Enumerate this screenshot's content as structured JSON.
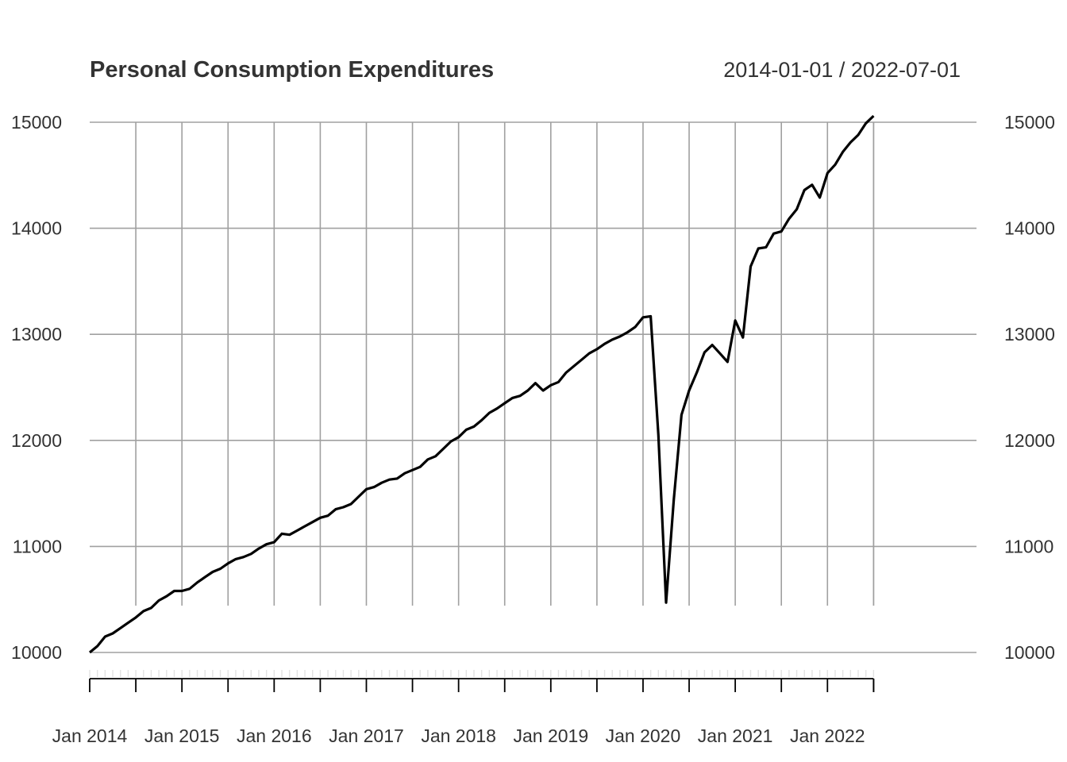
{
  "chart_data": {
    "type": "line",
    "title": "Personal Consumption Expenditures",
    "date_range": "2014-01-01 / 2022-07-01",
    "xlabel": "",
    "ylabel": "",
    "ylim": [
      10000,
      15000
    ],
    "y_ticks": [
      10000,
      11000,
      12000,
      13000,
      14000,
      15000
    ],
    "y_tick_labels": [
      "10000",
      "11000",
      "12000",
      "13000",
      "14000",
      "15000"
    ],
    "x_ticks": [
      "2014-01",
      "2015-01",
      "2016-01",
      "2017-01",
      "2018-01",
      "2019-01",
      "2020-01",
      "2021-01",
      "2022-01"
    ],
    "x_tick_labels": [
      "Jan 2014",
      "Jan 2015",
      "Jan 2016",
      "Jan 2017",
      "Jan 2018",
      "Jan 2019",
      "Jan 2020",
      "Jan 2021",
      "Jan 2022"
    ],
    "grid": true,
    "line_color": "#000000",
    "grid_color": "#a0a0a0",
    "x": [
      "2014-01",
      "2014-02",
      "2014-03",
      "2014-04",
      "2014-05",
      "2014-06",
      "2014-07",
      "2014-08",
      "2014-09",
      "2014-10",
      "2014-11",
      "2014-12",
      "2015-01",
      "2015-02",
      "2015-03",
      "2015-04",
      "2015-05",
      "2015-06",
      "2015-07",
      "2015-08",
      "2015-09",
      "2015-10",
      "2015-11",
      "2015-12",
      "2016-01",
      "2016-02",
      "2016-03",
      "2016-04",
      "2016-05",
      "2016-06",
      "2016-07",
      "2016-08",
      "2016-09",
      "2016-10",
      "2016-11",
      "2016-12",
      "2017-01",
      "2017-02",
      "2017-03",
      "2017-04",
      "2017-05",
      "2017-06",
      "2017-07",
      "2017-08",
      "2017-09",
      "2017-10",
      "2017-11",
      "2017-12",
      "2018-01",
      "2018-02",
      "2018-03",
      "2018-04",
      "2018-05",
      "2018-06",
      "2018-07",
      "2018-08",
      "2018-09",
      "2018-10",
      "2018-11",
      "2018-12",
      "2019-01",
      "2019-02",
      "2019-03",
      "2019-04",
      "2019-05",
      "2019-06",
      "2019-07",
      "2019-08",
      "2019-09",
      "2019-10",
      "2019-11",
      "2019-12",
      "2020-01",
      "2020-02",
      "2020-03",
      "2020-04",
      "2020-05",
      "2020-06",
      "2020-07",
      "2020-08",
      "2020-09",
      "2020-10",
      "2020-11",
      "2020-12",
      "2021-01",
      "2021-02",
      "2021-03",
      "2021-04",
      "2021-05",
      "2021-06",
      "2021-07",
      "2021-08",
      "2021-09",
      "2021-10",
      "2021-11",
      "2021-12",
      "2022-01",
      "2022-02",
      "2022-03",
      "2022-04",
      "2022-05",
      "2022-06",
      "2022-07"
    ],
    "series": [
      {
        "values": [
          10000,
          10060,
          10150,
          10180,
          10230,
          10280,
          10330,
          10390,
          10420,
          10490,
          10530,
          10580,
          10580,
          10600,
          10660,
          10710,
          10760,
          10790,
          10840,
          10880,
          10900,
          10930,
          10980,
          11020,
          11040,
          11120,
          11110,
          11150,
          11190,
          11230,
          11270,
          11290,
          11350,
          11370,
          11400,
          11470,
          11540,
          11560,
          11600,
          11630,
          11640,
          11690,
          11720,
          11750,
          11820,
          11850,
          11920,
          11990,
          12030,
          12100,
          12130,
          12190,
          12260,
          12300,
          12350,
          12400,
          12420,
          12470,
          12540,
          12470,
          12520,
          12550,
          12640,
          12700,
          12760,
          12820,
          12860,
          12910,
          12950,
          12980,
          13020,
          13070,
          13160,
          13170,
          12050,
          10470,
          11440,
          12240,
          12470,
          12640,
          12830,
          12900,
          12820,
          12740,
          13130,
          12970,
          13640,
          13810,
          13820,
          13950,
          13970,
          14090,
          14180,
          14360,
          14410,
          14290,
          14520,
          14600,
          14720,
          14810,
          14880,
          14990,
          15060
        ]
      }
    ]
  }
}
